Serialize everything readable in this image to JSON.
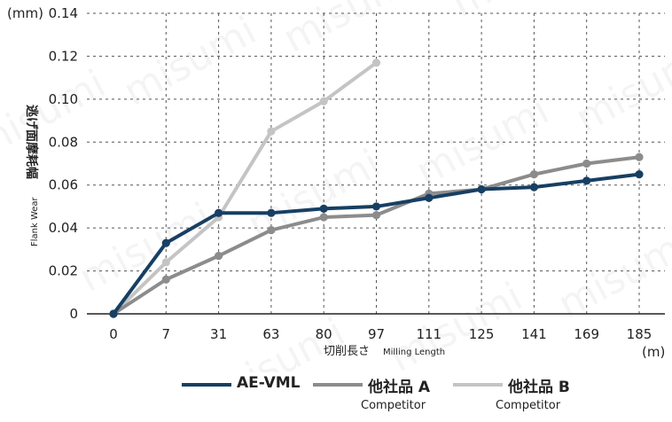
{
  "chart_data": {
    "type": "line",
    "y_unit": "(mm)",
    "x_unit": "(m)",
    "ylabel_jp": "逃げ面摩耗幅",
    "ylabel_en": "Flank Wear",
    "xlabel_jp": "切削長さ",
    "xlabel_en": "Milling Length",
    "categories": [
      "0",
      "7",
      "31",
      "63",
      "80",
      "97",
      "111",
      "125",
      "141",
      "169",
      "185"
    ],
    "y_ticks": [
      "0",
      "0.02",
      "0.04",
      "0.06",
      "0.08",
      "0.10",
      "0.12",
      "0.14"
    ],
    "ylim": [
      0,
      0.14
    ],
    "grid": true,
    "legend_position": "bottom",
    "watermark": "misumi",
    "series": [
      {
        "name": "AE-VML",
        "sub": "",
        "color": "#173f63",
        "values": [
          0,
          0.033,
          0.047,
          0.047,
          0.049,
          0.05,
          0.054,
          0.058,
          0.059,
          0.062,
          0.065
        ]
      },
      {
        "name": "他社品 A",
        "sub": "Competitor",
        "color": "#8c8c8c",
        "values": [
          0,
          0.016,
          0.027,
          0.039,
          0.045,
          0.046,
          0.056,
          0.058,
          0.065,
          0.07,
          0.073
        ]
      },
      {
        "name": "他社品 B",
        "sub": "Competitor",
        "color": "#c4c4c4",
        "values": [
          0,
          0.024,
          0.045,
          0.085,
          0.099,
          0.117,
          null,
          null,
          null,
          null,
          null
        ]
      }
    ]
  }
}
